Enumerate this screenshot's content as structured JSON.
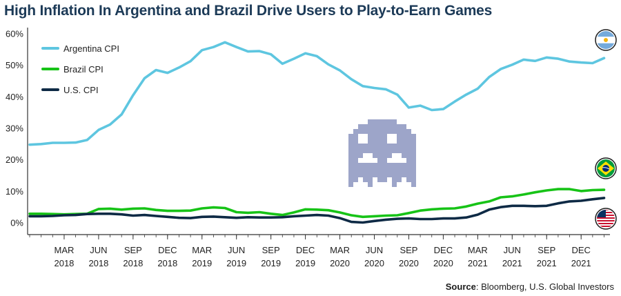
{
  "title": "High Inflation In Argentina and Brazil Drive Users to Play-to-Earn Games",
  "source": {
    "label": "Source",
    "text": ": Bloomberg, U.S. Global Investors"
  },
  "chart_data": {
    "type": "line",
    "title": "High Inflation In Argentina and Brazil Drive Users to Play-to-Earn Games",
    "xlabel": "",
    "ylabel": "",
    "x": [
      "2017-12",
      "2018-01",
      "2018-02",
      "2018-03",
      "2018-04",
      "2018-05",
      "2018-06",
      "2018-07",
      "2018-08",
      "2018-09",
      "2018-10",
      "2018-11",
      "2018-12",
      "2019-01",
      "2019-02",
      "2019-03",
      "2019-04",
      "2019-05",
      "2019-06",
      "2019-07",
      "2019-08",
      "2019-09",
      "2019-10",
      "2019-11",
      "2019-12",
      "2020-01",
      "2020-02",
      "2020-03",
      "2020-04",
      "2020-05",
      "2020-06",
      "2020-07",
      "2020-08",
      "2020-09",
      "2020-10",
      "2020-11",
      "2020-12",
      "2021-01",
      "2021-02",
      "2021-03",
      "2021-04",
      "2021-05",
      "2021-06",
      "2021-07",
      "2021-08",
      "2021-09",
      "2021-10",
      "2021-11",
      "2021-12",
      "2022-01",
      "2022-02"
    ],
    "x_tick_labels": [
      {
        "x": "2018-03",
        "month": "MAR",
        "year": "2018"
      },
      {
        "x": "2018-06",
        "month": "JUN",
        "year": "2018"
      },
      {
        "x": "2018-09",
        "month": "SEP",
        "year": "2018"
      },
      {
        "x": "2018-12",
        "month": "DEC",
        "year": "2018"
      },
      {
        "x": "2019-03",
        "month": "MAR",
        "year": "2019"
      },
      {
        "x": "2019-06",
        "month": "JUN",
        "year": "2019"
      },
      {
        "x": "2019-09",
        "month": "SEP",
        "year": "2019"
      },
      {
        "x": "2019-12",
        "month": "DEC",
        "year": "2019"
      },
      {
        "x": "2020-03",
        "month": "MAR",
        "year": "2020"
      },
      {
        "x": "2020-06",
        "month": "JUN",
        "year": "2020"
      },
      {
        "x": "2020-09",
        "month": "SEP",
        "year": "2020"
      },
      {
        "x": "2020-12",
        "month": "DEC",
        "year": "2020"
      },
      {
        "x": "2021-03",
        "month": "MAR",
        "year": "2021"
      },
      {
        "x": "2021-06",
        "month": "JUN",
        "year": "2021"
      },
      {
        "x": "2021-09",
        "month": "SEP",
        "year": "2021"
      },
      {
        "x": "2021-12",
        "month": "DEC",
        "year": "2021"
      }
    ],
    "y_ticks": [
      {
        "value": 0,
        "label": "0%"
      },
      {
        "value": 10,
        "label": "10%"
      },
      {
        "value": 20,
        "label": "20%"
      },
      {
        "value": 30,
        "label": "30%"
      },
      {
        "value": 40,
        "label": "40%"
      },
      {
        "value": 50,
        "label": "50%"
      },
      {
        "value": 60,
        "label": "60%"
      }
    ],
    "ylim": [
      -5,
      62
    ],
    "grid": false,
    "legend": "top-left",
    "series": [
      {
        "name": "Argentina CPI",
        "color": "#5ec6e0",
        "values": [
          24.8,
          25.0,
          25.4,
          25.4,
          25.5,
          26.3,
          29.5,
          31.2,
          34.4,
          40.5,
          45.9,
          48.5,
          47.6,
          49.3,
          51.3,
          54.8,
          55.8,
          57.3,
          55.8,
          54.4,
          54.5,
          53.5,
          50.5,
          52.1,
          53.8,
          52.9,
          50.3,
          48.4,
          45.6,
          43.4,
          42.8,
          42.4,
          40.7,
          36.6,
          37.2,
          35.8,
          36.1,
          38.5,
          40.7,
          42.6,
          46.3,
          48.8,
          50.2,
          51.8,
          51.4,
          52.5,
          52.1,
          51.2,
          50.9,
          50.7,
          52.3
        ]
      },
      {
        "name": "Brazil CPI",
        "color": "#17c317",
        "values": [
          2.9,
          2.9,
          2.8,
          2.7,
          2.8,
          2.9,
          4.4,
          4.5,
          4.2,
          4.5,
          4.6,
          4.1,
          3.8,
          3.8,
          3.9,
          4.6,
          4.9,
          4.7,
          3.4,
          3.2,
          3.4,
          2.9,
          2.5,
          3.3,
          4.3,
          4.2,
          4.0,
          3.3,
          2.4,
          1.9,
          2.1,
          2.3,
          2.4,
          3.1,
          3.9,
          4.3,
          4.5,
          4.6,
          5.2,
          6.1,
          6.8,
          8.1,
          8.4,
          9.0,
          9.7,
          10.3,
          10.7,
          10.7,
          10.1,
          10.4,
          10.5
        ]
      },
      {
        "name": "U.S. CPI",
        "color": "#0e2a45",
        "values": [
          2.1,
          2.1,
          2.2,
          2.4,
          2.5,
          2.8,
          2.9,
          2.9,
          2.7,
          2.3,
          2.5,
          2.2,
          1.9,
          1.6,
          1.5,
          1.9,
          2.0,
          1.8,
          1.6,
          1.8,
          1.7,
          1.7,
          1.8,
          2.1,
          2.3,
          2.5,
          2.3,
          1.5,
          0.3,
          0.1,
          0.6,
          1.0,
          1.3,
          1.4,
          1.2,
          1.2,
          1.4,
          1.4,
          1.7,
          2.6,
          4.2,
          5.0,
          5.4,
          5.4,
          5.3,
          5.4,
          6.2,
          6.8,
          7.0,
          7.5,
          7.9
        ]
      }
    ],
    "icons": [
      "argentina-flag-icon",
      "brazil-flag-icon",
      "us-flag-icon",
      "pixel-ghost-icon"
    ]
  }
}
